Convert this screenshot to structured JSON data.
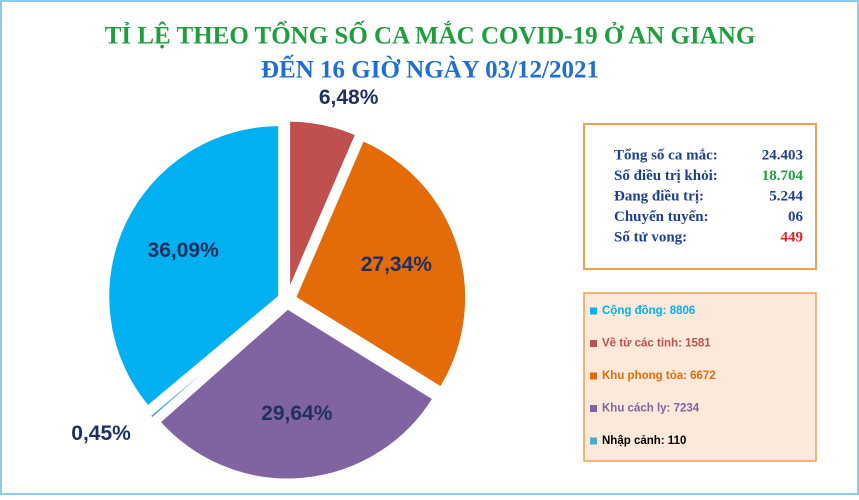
{
  "chart_data": {
    "type": "pie",
    "title": "TỈ LỆ THEO TỔNG SỐ CA MẮC COVID-19 Ở AN GIANG",
    "subtitle": "ĐẾN 16 GIỜ NGÀY 03/12/2021",
    "categories": [
      "Cộng đồng: 8806",
      "Về từ các tỉnh: 1581",
      "Khu phong tỏa: 6672",
      "Khu cách ly: 7234",
      "Nhập cảnh: 110"
    ],
    "values": [
      36.09,
      6.48,
      27.34,
      29.64,
      0.45
    ],
    "value_labels": [
      "36,09%",
      "6,48%",
      "27,34%",
      "29,64%",
      "0,45%"
    ],
    "colors": [
      "#00b0f0",
      "#c0504d",
      "#e36c09",
      "#8064a2",
      "#4bacc6"
    ],
    "legend_text_colors": [
      "#00b0f0",
      "#c0504d",
      "#e36c09",
      "#8064a2",
      "#000000"
    ]
  },
  "info_box": {
    "rows": [
      {
        "label": "Tổng số ca mắc:",
        "value": "24.403",
        "color": "#1f3f8f"
      },
      {
        "label": "Số điều trị khỏi:",
        "value": "18.704",
        "color": "#1e9e3e"
      },
      {
        "label": "Đang điều trị:",
        "value": "5.244",
        "color": "#1f3f8f"
      },
      {
        "label": "Chuyển tuyến:",
        "value": "06",
        "color": "#1f3f8f"
      },
      {
        "label": "Số tử vong:",
        "value": "449",
        "color": "#e02020"
      }
    ]
  }
}
